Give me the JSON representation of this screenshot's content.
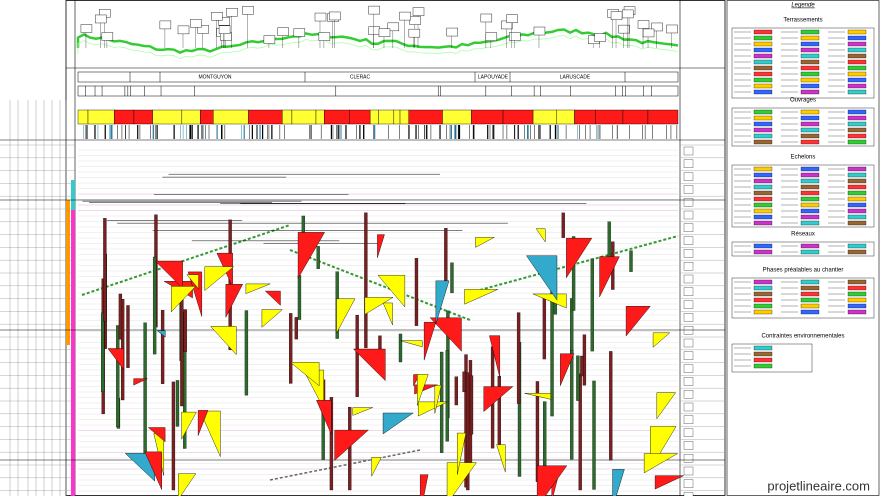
{
  "legend": {
    "title": "Legende",
    "sections": [
      "Terrassements",
      "Ouvrages",
      "Echelons",
      "Réseaux",
      "Phases préalables au chantier",
      "Contraintes environnementales"
    ]
  },
  "towns": [
    "MONTGUYON",
    "CLERAC",
    "LAPOUYADE",
    "LARUSCADE"
  ],
  "watermark": "projetlineaire.com"
}
